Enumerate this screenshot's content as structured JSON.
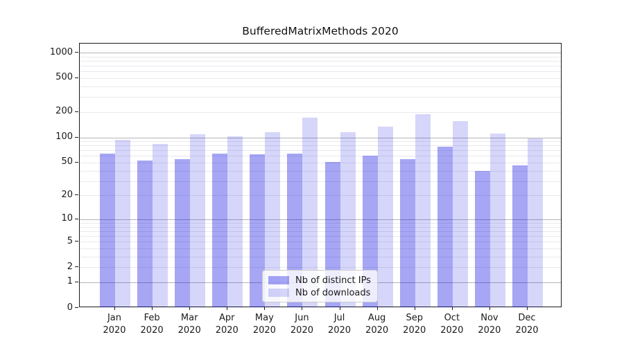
{
  "chart_data": {
    "type": "bar",
    "title": "BufferedMatrixMethods 2020",
    "categories": [
      "Jan",
      "Feb",
      "Mar",
      "Apr",
      "May",
      "Jun",
      "Jul",
      "Aug",
      "Sep",
      "Oct",
      "Nov",
      "Dec"
    ],
    "category_year_label": "2020",
    "series": [
      {
        "name": "Nb of distinct IPs",
        "color": "rgba(0,0,224,0.35)",
        "apparent_hex": "#a6a6f2",
        "values": [
          64,
          53,
          55,
          64,
          63,
          64,
          51,
          60,
          55,
          77,
          40,
          46
        ]
      },
      {
        "name": "Nb of downloads",
        "color": "rgba(0,0,224,0.16)",
        "apparent_hex": "#d9d9f7",
        "values": [
          93,
          84,
          109,
          103,
          115,
          171,
          115,
          135,
          188,
          155,
          110,
          98
        ]
      }
    ],
    "xlabel": "",
    "ylabel": "",
    "y_axis": {
      "scale": "log1p",
      "tick_labels": [
        "1000",
        "500",
        "200",
        "100",
        "50",
        "20",
        "10",
        "5",
        "2",
        "1",
        "0"
      ],
      "tick_values": [
        1000,
        500,
        200,
        100,
        50,
        20,
        10,
        5,
        2,
        1,
        0
      ],
      "ylim": [
        0,
        1250
      ],
      "grid": "major-and-minor"
    },
    "legend": {
      "position": "lower center",
      "entries": [
        "Nb of distinct IPs",
        "Nb of downloads"
      ]
    },
    "colors": {
      "major_grid": "#b4b4b4",
      "minor_grid": "#e9e9ee",
      "spine": "#1a1a1a",
      "text": "#1a1a1a",
      "background": "#ffffff"
    }
  }
}
